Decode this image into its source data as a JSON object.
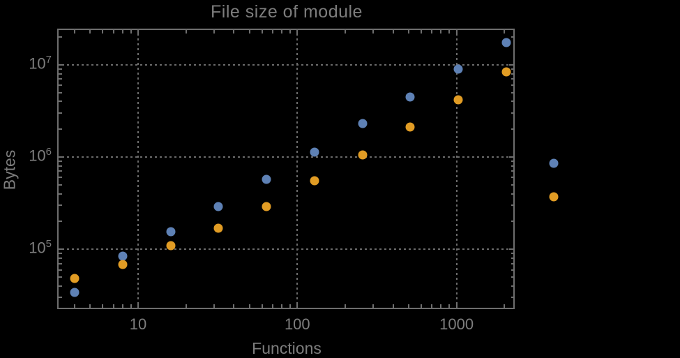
{
  "window": {
    "background": "#000000"
  },
  "chart_data": {
    "type": "scatter",
    "title": "File size of module",
    "xlabel": "Functions",
    "ylabel": "Bytes",
    "xscale": "log",
    "yscale": "log",
    "xlim": [
      3.1,
      2370
    ],
    "ylim": [
      22500,
      24600000
    ],
    "grid": "dotted",
    "legend": "none",
    "frame_color": "#6e6e6e",
    "grid_color": "#6b6b6b",
    "text_color": "#7d7d7d",
    "x_ticks": [
      {
        "value": 10,
        "label": "10"
      },
      {
        "value": 100,
        "label": "100"
      },
      {
        "value": 1000,
        "label": "1000"
      }
    ],
    "y_ticks": [
      {
        "value": 100000,
        "base": "10",
        "exp": "5"
      },
      {
        "value": 1000000,
        "base": "10",
        "exp": "6"
      },
      {
        "value": 10000000,
        "base": "10",
        "exp": "7"
      }
    ],
    "series": [
      {
        "name": "series-1-blue",
        "color": "#5E81B5",
        "points": [
          [
            4,
            34000
          ],
          [
            8,
            84000
          ],
          [
            16,
            155000
          ],
          [
            32,
            290000
          ],
          [
            64,
            570000
          ],
          [
            128,
            1120000
          ],
          [
            256,
            2300000
          ],
          [
            512,
            4500000
          ],
          [
            1024,
            8900000
          ],
          [
            2048,
            17500000
          ],
          [
            4096,
            860000
          ]
        ]
      },
      {
        "name": "series-2-orange",
        "color": "#E19C24",
        "points": [
          [
            4,
            48000
          ],
          [
            8,
            69000
          ],
          [
            16,
            110000
          ],
          [
            32,
            170000
          ],
          [
            64,
            290000
          ],
          [
            128,
            550000
          ],
          [
            256,
            1060000
          ],
          [
            512,
            2100000
          ],
          [
            1024,
            4200000
          ],
          [
            2048,
            8400000
          ],
          [
            4096,
            370000
          ]
        ]
      }
    ]
  }
}
